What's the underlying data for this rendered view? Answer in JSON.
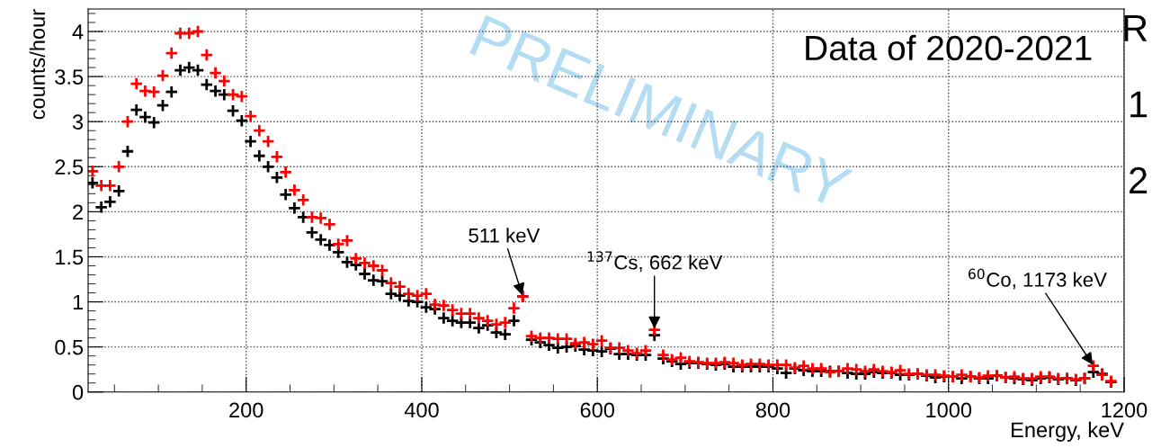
{
  "chart_data": {
    "type": "scatter",
    "xlabel": "Energy, keV",
    "ylabel": "counts/hour",
    "x": [
      25,
      35,
      45,
      55,
      65,
      75,
      85,
      95,
      105,
      115,
      125,
      135,
      145,
      155,
      165,
      175,
      185,
      195,
      205,
      215,
      225,
      235,
      245,
      255,
      265,
      275,
      285,
      295,
      305,
      315,
      325,
      335,
      345,
      355,
      365,
      375,
      385,
      395,
      405,
      415,
      425,
      435,
      445,
      455,
      465,
      475,
      485,
      495,
      505,
      515,
      525,
      535,
      545,
      555,
      565,
      575,
      585,
      595,
      605,
      615,
      625,
      635,
      645,
      655,
      665,
      675,
      685,
      695,
      705,
      715,
      725,
      735,
      745,
      755,
      765,
      775,
      785,
      795,
      805,
      815,
      825,
      835,
      845,
      855,
      865,
      875,
      885,
      895,
      905,
      915,
      925,
      935,
      945,
      955,
      965,
      975,
      985,
      995,
      1005,
      1015,
      1025,
      1035,
      1045,
      1055,
      1065,
      1075,
      1085,
      1095,
      1105,
      1115,
      1125,
      1135,
      1145,
      1155,
      1165,
      1175,
      1185
    ],
    "series": [
      {
        "color": "#000000",
        "values": [
          2.32,
          2.05,
          2.11,
          2.23,
          2.67,
          3.13,
          3.05,
          2.99,
          3.18,
          3.33,
          3.57,
          3.6,
          3.57,
          3.41,
          3.34,
          3.3,
          3.12,
          3.01,
          2.78,
          2.62,
          2.5,
          2.38,
          2.19,
          2.04,
          1.94,
          1.77,
          1.69,
          1.63,
          1.55,
          1.44,
          1.41,
          1.31,
          1.24,
          1.23,
          1.09,
          1.07,
          1.01,
          1.0,
          0.94,
          0.92,
          0.82,
          0.79,
          0.77,
          0.77,
          0.71,
          0.74,
          0.66,
          0.64,
          0.79,
          1.06,
          0.58,
          0.55,
          0.52,
          0.49,
          0.5,
          0.51,
          0.47,
          0.46,
          0.45,
          0.48,
          0.42,
          0.42,
          0.41,
          0.41,
          0.63,
          0.37,
          0.34,
          0.31,
          0.32,
          0.32,
          0.31,
          0.3,
          0.31,
          0.28,
          0.28,
          0.28,
          0.28,
          0.28,
          0.26,
          0.21,
          0.26,
          0.24,
          0.23,
          0.23,
          0.23,
          0.23,
          0.21,
          0.2,
          0.2,
          0.22,
          0.21,
          0.21,
          0.19,
          0.19,
          0.2,
          0.18,
          0.16,
          0.17,
          0.17,
          0.15,
          0.17,
          0.15,
          0.15,
          0.18,
          0.16,
          0.15,
          0.14,
          0.13,
          0.15,
          0.16,
          0.14,
          0.15,
          0.13,
          0.15,
          0.22,
          0.2,
          0.11
        ]
      },
      {
        "color": "#ff0000",
        "values": [
          2.45,
          2.29,
          2.29,
          2.5,
          3.0,
          3.42,
          3.34,
          3.33,
          3.51,
          3.76,
          3.98,
          3.98,
          4.0,
          3.74,
          3.54,
          3.45,
          3.3,
          3.28,
          3.06,
          2.9,
          2.78,
          2.61,
          2.44,
          2.24,
          2.13,
          1.94,
          1.93,
          1.86,
          1.64,
          1.68,
          1.48,
          1.43,
          1.4,
          1.35,
          1.21,
          1.17,
          1.09,
          1.07,
          1.09,
          0.97,
          0.96,
          0.91,
          0.87,
          0.87,
          0.82,
          0.79,
          0.75,
          0.77,
          0.93,
          1.06,
          0.62,
          0.6,
          0.6,
          0.59,
          0.59,
          0.54,
          0.55,
          0.53,
          0.57,
          0.49,
          0.49,
          0.46,
          0.43,
          0.46,
          0.69,
          0.41,
          0.36,
          0.38,
          0.34,
          0.33,
          0.32,
          0.32,
          0.33,
          0.32,
          0.3,
          0.31,
          0.31,
          0.3,
          0.3,
          0.3,
          0.27,
          0.29,
          0.26,
          0.26,
          0.22,
          0.23,
          0.26,
          0.25,
          0.23,
          0.25,
          0.23,
          0.22,
          0.24,
          0.2,
          0.2,
          0.19,
          0.19,
          0.18,
          0.17,
          0.19,
          0.17,
          0.16,
          0.18,
          0.18,
          0.16,
          0.17,
          0.15,
          0.15,
          0.17,
          0.17,
          0.15,
          0.15,
          0.14,
          0.15,
          0.29,
          0.19,
          0.12
        ]
      }
    ],
    "marker": "cross",
    "xlim": [
      20,
      1200
    ],
    "xticks": [
      200,
      400,
      600,
      800,
      1000,
      1200
    ],
    "ylim": [
      0,
      4.25
    ],
    "yticks": [
      0,
      0.5,
      1,
      1.5,
      2,
      2.5,
      3,
      3.5,
      4
    ],
    "grid": true,
    "annotations": [
      {
        "text": "511 keV",
        "x": 515,
        "y": 1.06
      },
      {
        "text": "$^{137}$Cs, 662 keV",
        "x": 665,
        "y": 0.69
      },
      {
        "text": "$^{60}$Co, 1173 keV",
        "x": 1165,
        "y": 0.29
      },
      "Data of 2020-2021",
      "PRELIMINARY",
      "R",
      "1",
      "2"
    ]
  }
}
